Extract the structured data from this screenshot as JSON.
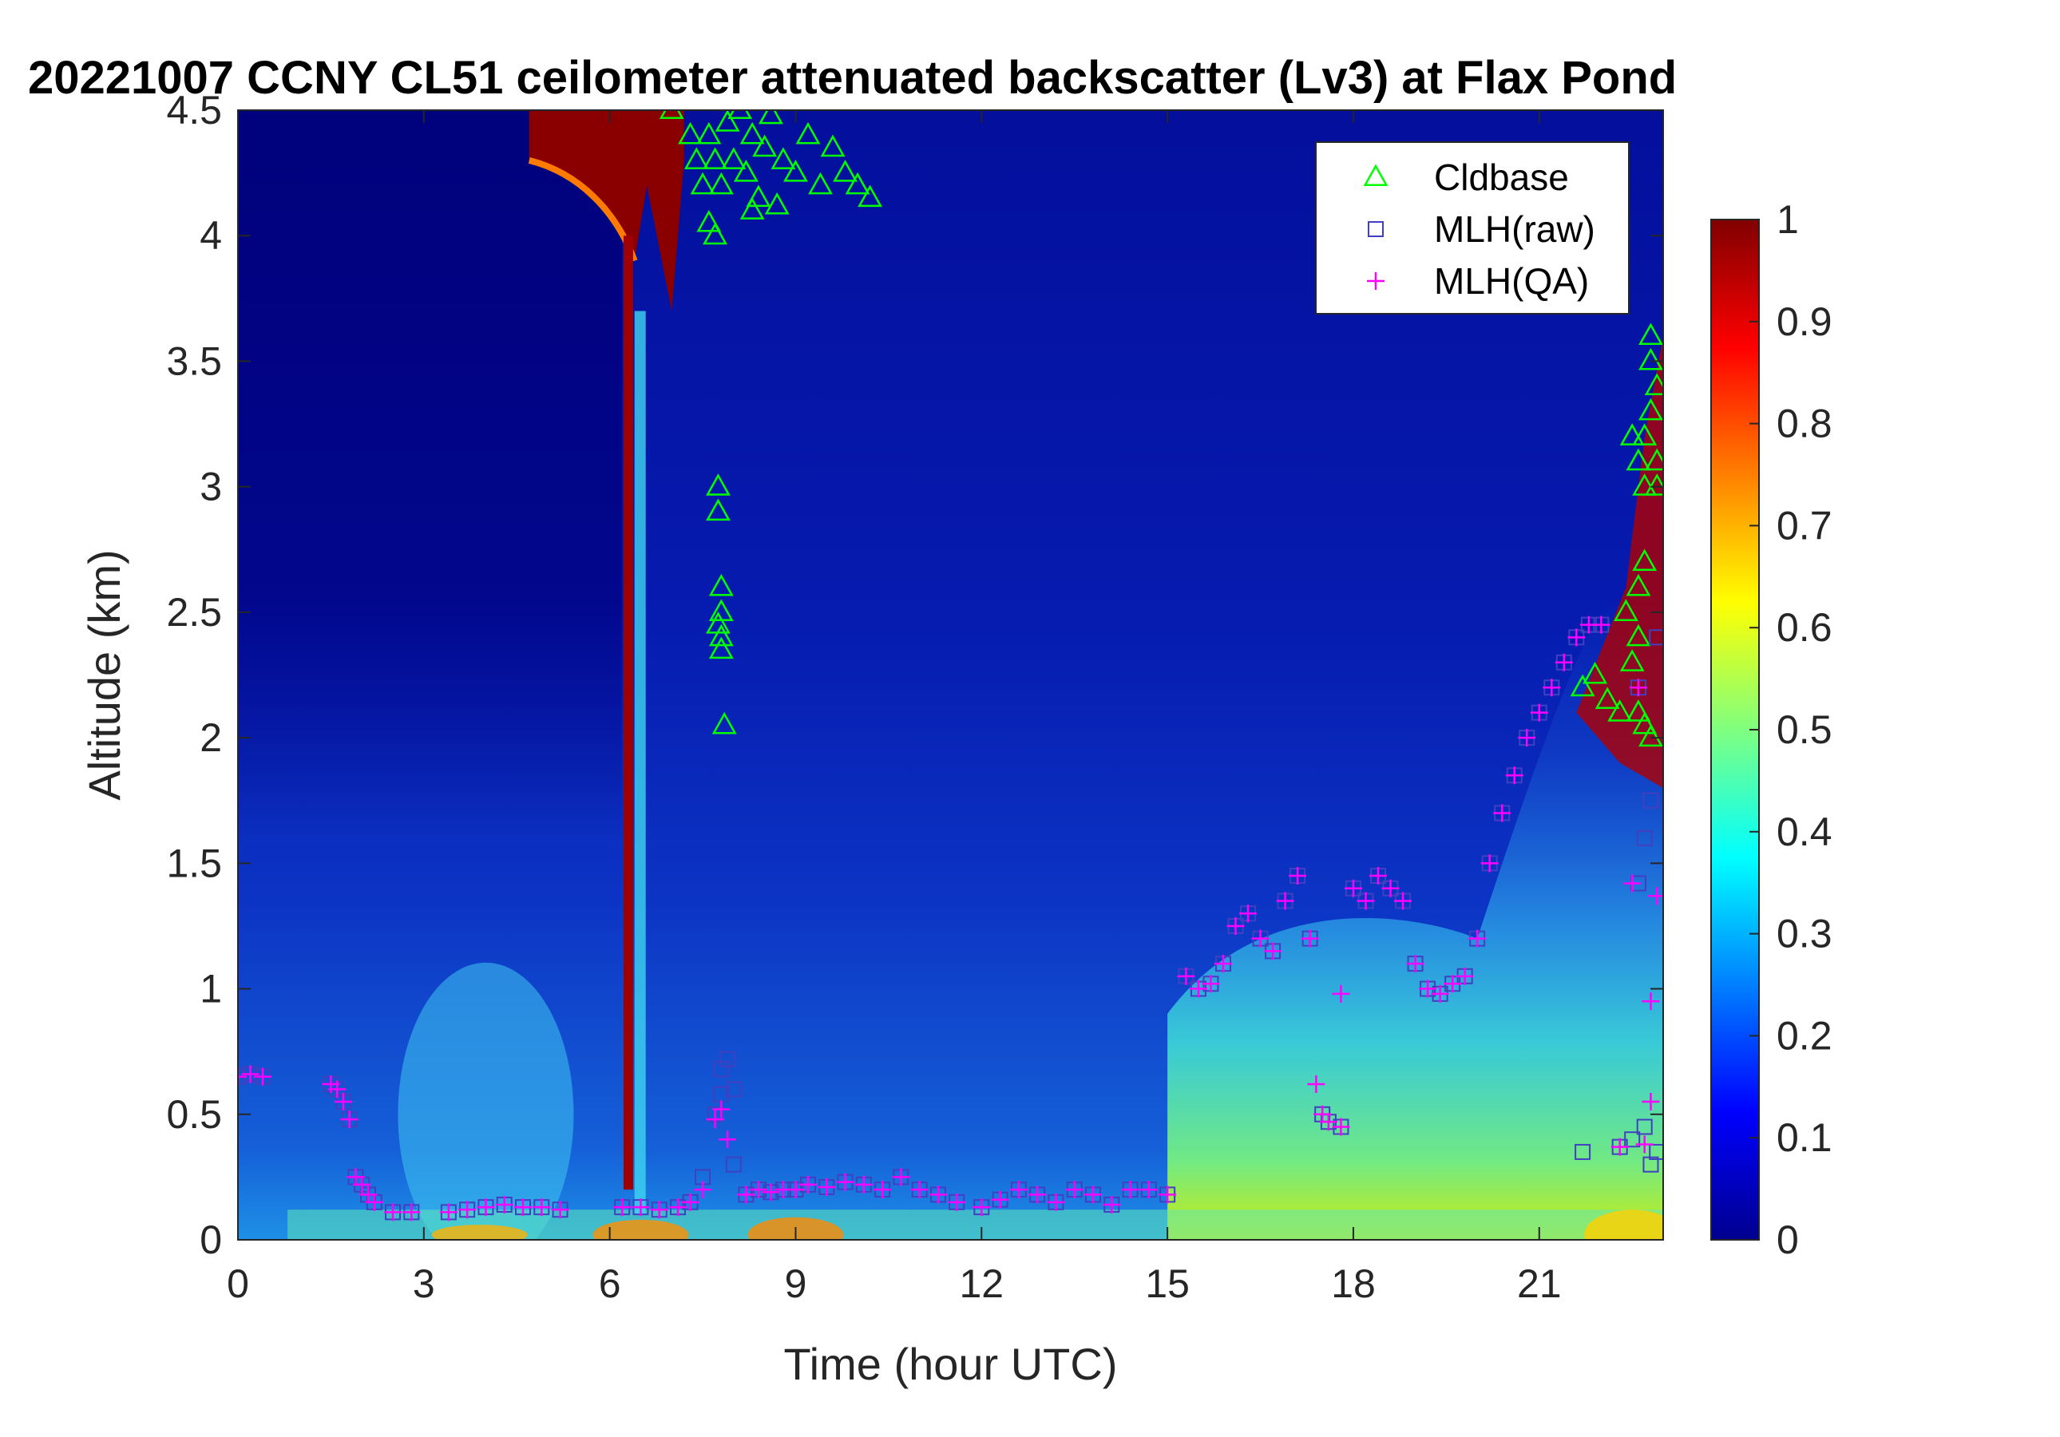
{
  "chart_data": {
    "type": "heatmap",
    "title": "20221007 CCNY CL51 ceilometer attenuated backscatter (Lv3) at Flax Pond",
    "xlabel": "Time (hour UTC)",
    "ylabel": "Altitude (km)",
    "xlim": [
      0,
      23
    ],
    "ylim": [
      0,
      4.5
    ],
    "xticks": [
      "0",
      "3",
      "6",
      "9",
      "12",
      "15",
      "18",
      "21"
    ],
    "xtick_values": [
      0,
      3,
      6,
      9,
      12,
      15,
      18,
      21
    ],
    "yticks": [
      "0",
      "0.5",
      "1",
      "1.5",
      "2",
      "2.5",
      "3",
      "3.5",
      "4",
      "4.5"
    ],
    "ytick_values": [
      0,
      0.5,
      1,
      1.5,
      2,
      2.5,
      3,
      3.5,
      4,
      4.5
    ],
    "colorbar": {
      "colormap": "jet",
      "clim": [
        0,
        1
      ],
      "ticks": [
        "0",
        "0.1",
        "0.2",
        "0.3",
        "0.4",
        "0.5",
        "0.6",
        "0.7",
        "0.8",
        "0.9",
        "1"
      ],
      "tick_values": [
        0,
        0.1,
        0.2,
        0.3,
        0.4,
        0.5,
        0.6,
        0.7,
        0.8,
        0.9,
        1
      ]
    },
    "legend": {
      "placement": "top-right",
      "entries": [
        "Cldbase",
        "MLH(raw)",
        "MLH(QA)"
      ]
    },
    "colors": {
      "cldbase": "#00ff00",
      "mlh_raw": "#4040c0",
      "mlh_qa": "#ff00ff"
    },
    "series": [
      {
        "name": "Cldbase",
        "marker": "triangle",
        "x": [
          7.0,
          7.3,
          7.4,
          7.5,
          7.6,
          7.7,
          7.8,
          7.9,
          8.0,
          8.1,
          8.2,
          8.3,
          8.4,
          8.5,
          8.6,
          8.8,
          9.0,
          9.2,
          9.4,
          9.6,
          9.8,
          10.0,
          10.2,
          7.6,
          7.7,
          8.3,
          8.7,
          7.75,
          7.75,
          7.8,
          7.8,
          7.75,
          7.8,
          7.8,
          7.85,
          21.7,
          21.9,
          22.1,
          22.3,
          22.4,
          22.5,
          22.6,
          22.7,
          22.8,
          22.5,
          22.6,
          22.7,
          22.8,
          22.6,
          22.7,
          22.8,
          22.9,
          22.9,
          22.8,
          22.7,
          22.6,
          22.9
        ],
        "y": [
          4.5,
          4.4,
          4.3,
          4.2,
          4.4,
          4.3,
          4.2,
          4.45,
          4.3,
          4.5,
          4.25,
          4.4,
          4.15,
          4.35,
          4.48,
          4.3,
          4.25,
          4.4,
          4.2,
          4.35,
          4.25,
          4.2,
          4.15,
          4.05,
          4.0,
          4.1,
          4.12,
          3.0,
          2.9,
          2.6,
          2.5,
          2.45,
          2.4,
          2.35,
          2.05,
          2.2,
          2.25,
          2.15,
          2.1,
          2.5,
          2.3,
          2.1,
          2.05,
          2.0,
          3.2,
          3.1,
          3.0,
          3.3,
          2.4,
          2.7,
          3.5,
          3.4,
          3.1,
          3.6,
          3.2,
          2.6,
          3.0
        ]
      },
      {
        "name": "MLH(raw)",
        "marker": "square",
        "x": [
          0.0,
          0.2,
          0.4,
          1.5,
          1.6,
          1.7,
          1.8,
          1.9,
          2.0,
          2.1,
          2.2,
          2.5,
          2.8,
          3.4,
          3.7,
          4.0,
          4.3,
          4.6,
          4.9,
          5.2,
          6.2,
          6.5,
          6.8,
          7.1,
          7.3,
          7.5,
          7.7,
          7.8,
          7.8,
          7.9,
          8.0,
          8.0,
          8.2,
          8.4,
          8.6,
          8.8,
          9.0,
          9.2,
          9.5,
          9.8,
          10.1,
          10.4,
          10.7,
          11.0,
          11.3,
          11.6,
          12.0,
          12.3,
          12.6,
          12.9,
          13.2,
          13.5,
          13.8,
          14.1,
          14.4,
          14.7,
          15.0,
          15.3,
          15.5,
          15.7,
          15.9,
          16.1,
          16.3,
          16.5,
          16.7,
          16.9,
          17.1,
          17.3,
          17.5,
          17.6,
          17.8,
          18.0,
          18.2,
          18.4,
          18.6,
          18.8,
          19.0,
          19.2,
          19.4,
          19.6,
          19.8,
          20.0,
          20.2,
          20.4,
          20.6,
          20.8,
          21.0,
          21.2,
          21.4,
          21.6,
          21.8,
          22.0,
          21.7,
          22.3,
          22.5,
          22.6,
          22.7,
          22.8,
          22.9,
          22.6,
          22.7,
          22.8,
          22.9
        ],
        "y": [
          0.65,
          0.66,
          0.65,
          0.62,
          0.6,
          0.55,
          0.48,
          0.25,
          0.22,
          0.18,
          0.15,
          0.11,
          0.11,
          0.11,
          0.12,
          0.13,
          0.14,
          0.13,
          0.13,
          0.12,
          0.13,
          0.13,
          0.12,
          0.13,
          0.15,
          0.25,
          0.5,
          0.58,
          0.68,
          0.72,
          0.6,
          0.3,
          0.18,
          0.2,
          0.19,
          0.2,
          0.2,
          0.22,
          0.21,
          0.23,
          0.22,
          0.2,
          0.25,
          0.2,
          0.18,
          0.15,
          0.13,
          0.16,
          0.2,
          0.18,
          0.15,
          0.2,
          0.18,
          0.14,
          0.2,
          0.2,
          0.18,
          1.05,
          1.0,
          1.02,
          1.1,
          1.25,
          1.3,
          1.2,
          1.15,
          1.35,
          1.45,
          1.2,
          0.5,
          0.47,
          0.45,
          1.4,
          1.35,
          1.45,
          1.4,
          1.35,
          1.1,
          1.0,
          0.98,
          1.02,
          1.05,
          1.2,
          1.5,
          1.7,
          1.85,
          2.0,
          2.1,
          2.2,
          2.3,
          2.4,
          2.45,
          2.45,
          0.35,
          0.37,
          0.4,
          1.42,
          1.6,
          1.75,
          2.4,
          2.2,
          0.45,
          0.3,
          0.35
        ]
      },
      {
        "name": "MLH(QA)",
        "marker": "plus",
        "x": [
          0.0,
          0.2,
          0.4,
          1.5,
          1.6,
          1.7,
          1.8,
          1.9,
          2.0,
          2.1,
          2.2,
          2.5,
          2.8,
          3.4,
          3.7,
          4.0,
          4.3,
          4.6,
          4.9,
          5.2,
          6.2,
          6.5,
          6.8,
          7.1,
          7.3,
          7.5,
          7.7,
          7.8,
          7.9,
          8.2,
          8.4,
          8.6,
          8.8,
          9.0,
          9.2,
          9.5,
          9.8,
          10.1,
          10.4,
          10.7,
          11.0,
          11.3,
          11.6,
          12.0,
          12.3,
          12.6,
          12.9,
          13.2,
          13.5,
          13.8,
          14.1,
          14.4,
          14.7,
          15.0,
          15.3,
          15.5,
          15.7,
          15.9,
          16.1,
          16.3,
          16.5,
          16.7,
          16.9,
          17.1,
          17.3,
          17.4,
          17.5,
          17.6,
          17.8,
          17.8,
          18.0,
          18.2,
          18.4,
          18.6,
          18.8,
          19.0,
          19.2,
          19.4,
          19.6,
          19.8,
          20.0,
          20.2,
          20.4,
          20.6,
          20.8,
          21.0,
          21.2,
          21.4,
          21.6,
          21.8,
          22.0,
          22.3,
          22.5,
          22.6,
          22.7,
          22.8,
          22.8,
          22.9
        ],
        "y": [
          0.65,
          0.66,
          0.65,
          0.62,
          0.6,
          0.55,
          0.48,
          0.25,
          0.22,
          0.18,
          0.15,
          0.11,
          0.11,
          0.11,
          0.12,
          0.13,
          0.14,
          0.13,
          0.13,
          0.12,
          0.13,
          0.13,
          0.12,
          0.13,
          0.15,
          0.2,
          0.48,
          0.52,
          0.4,
          0.18,
          0.2,
          0.19,
          0.2,
          0.2,
          0.22,
          0.21,
          0.23,
          0.22,
          0.2,
          0.25,
          0.2,
          0.18,
          0.15,
          0.13,
          0.16,
          0.2,
          0.18,
          0.15,
          0.2,
          0.18,
          0.14,
          0.2,
          0.2,
          0.18,
          1.05,
          1.0,
          1.02,
          1.1,
          1.25,
          1.3,
          1.2,
          1.15,
          1.35,
          1.45,
          1.2,
          0.62,
          0.5,
          0.47,
          0.45,
          0.98,
          1.4,
          1.35,
          1.45,
          1.4,
          1.35,
          1.1,
          1.0,
          0.98,
          1.02,
          1.05,
          1.2,
          1.5,
          1.7,
          1.85,
          2.0,
          2.1,
          2.2,
          2.3,
          2.4,
          2.45,
          2.45,
          0.37,
          1.42,
          2.2,
          0.38,
          0.95,
          0.55,
          1.37
        ]
      }
    ]
  }
}
